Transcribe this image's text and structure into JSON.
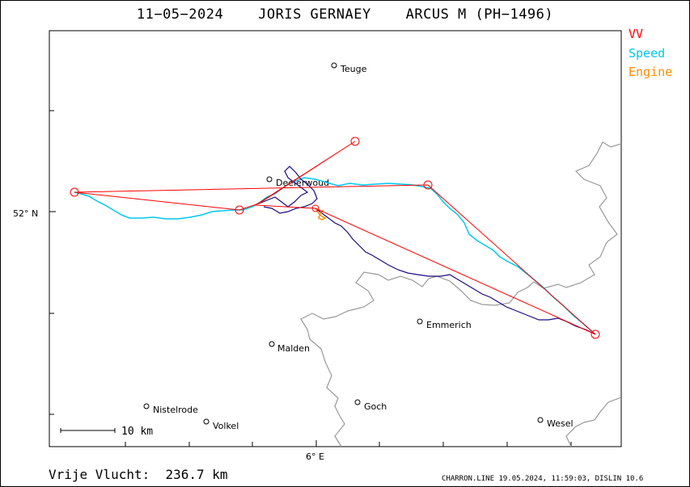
{
  "title": "11−05−2024    JORIS GERNAEY    ARCUS M (PH−1496)",
  "legend": [
    {
      "label": "VV",
      "color": "#ff0000"
    },
    {
      "label": "Speed",
      "color": "#00c8f0"
    },
    {
      "label": "Engine",
      "color": "#ff8c00"
    }
  ],
  "axes": {
    "lat_label": "52° N",
    "lon_label": "6° E"
  },
  "scale_bar": {
    "label": "10 km"
  },
  "places": [
    {
      "name": "Teuge"
    },
    {
      "name": "Deelerwoud"
    },
    {
      "name": "Emmerich"
    },
    {
      "name": "Malden"
    },
    {
      "name": "Nistelrode"
    },
    {
      "name": "Goch"
    },
    {
      "name": "Volkel"
    },
    {
      "name": "Wesel"
    }
  ],
  "footer": {
    "distance_text": "Vrije Vlucht:  236.7 km",
    "credit": "CHARRON.LINE 19.05.2024, 11:59:03, DISLIN 10.6"
  },
  "colors": {
    "task_line": "#ff0000",
    "speed_track": "#00c8f0",
    "engine_track": "#ff8c00",
    "climb_track": "#1a0a80",
    "border": "#999999"
  }
}
